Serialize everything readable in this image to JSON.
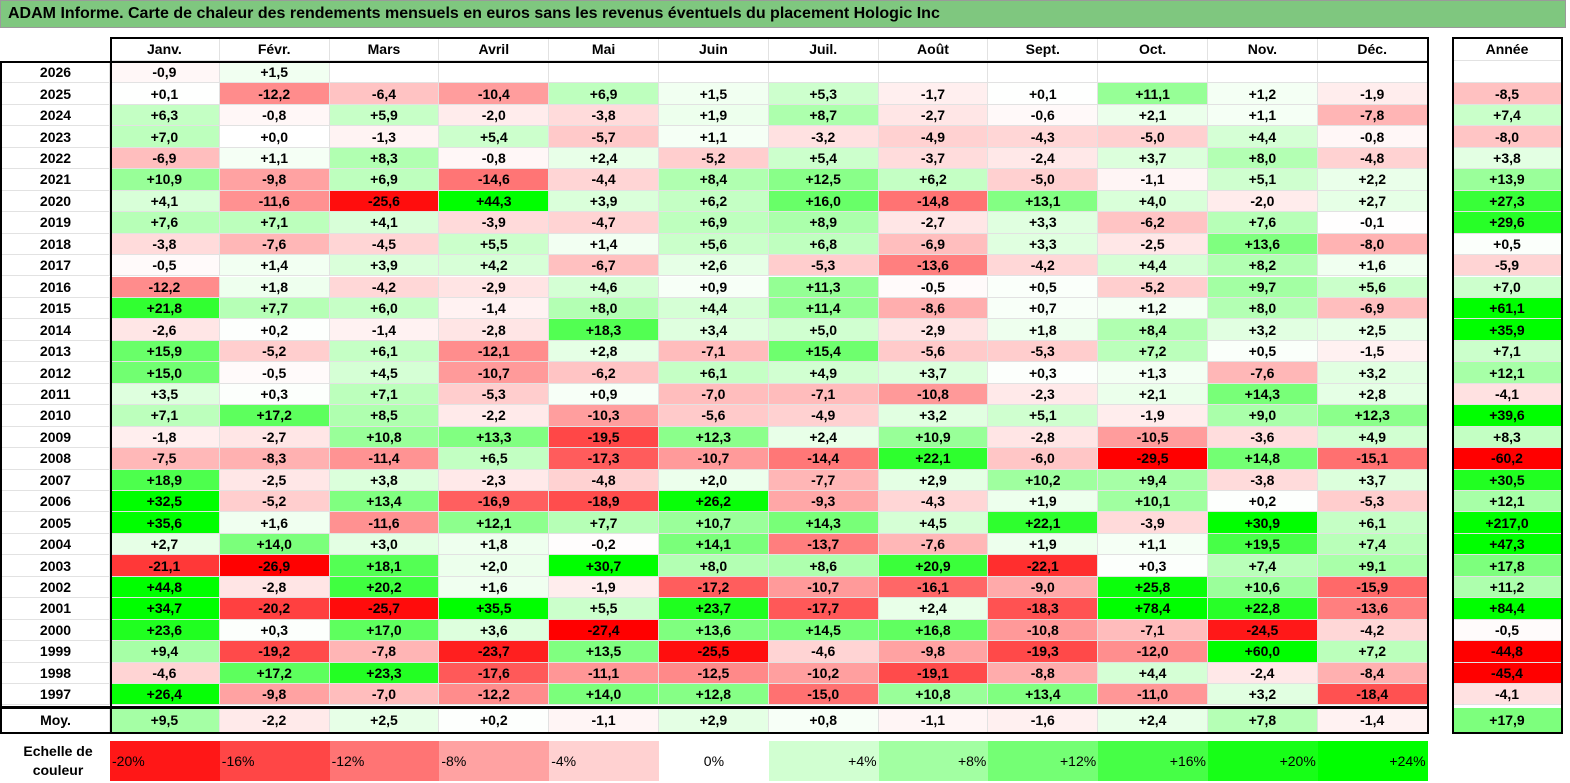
{
  "title": "ADAM Informe. Carte de chaleur des rendements mensuels en euros sans les revenus éventuels du placement Hologic Inc",
  "chart_data": {
    "type": "heatmap",
    "columns": [
      "Janv.",
      "Févr.",
      "Mars",
      "Avril",
      "Mai",
      "Juin",
      "Juil.",
      "Août",
      "Sept.",
      "Oct.",
      "Nov.",
      "Déc."
    ],
    "year_header": "Année",
    "rows": [
      {
        "label": "2026",
        "values": [
          "-0,9",
          "+1,5",
          "",
          "",
          "",
          "",
          "",
          "",
          "",
          "",
          "",
          ""
        ],
        "year": ""
      },
      {
        "label": "2025",
        "values": [
          "+0,1",
          "-12,2",
          "-6,4",
          "-10,4",
          "+6,9",
          "+1,5",
          "+5,3",
          "-1,7",
          "+0,1",
          "+11,1",
          "+1,2",
          "-1,9"
        ],
        "year": "-8,5"
      },
      {
        "label": "2024",
        "values": [
          "+6,3",
          "-0,8",
          "+5,9",
          "-2,0",
          "-3,8",
          "+1,9",
          "+8,7",
          "-2,7",
          "-0,6",
          "+2,1",
          "+1,1",
          "-7,8"
        ],
        "year": "+7,4"
      },
      {
        "label": "2023",
        "values": [
          "+7,0",
          "+0,0",
          "-1,3",
          "+5,4",
          "-5,7",
          "+1,1",
          "-3,2",
          "-4,9",
          "-4,3",
          "-5,0",
          "+4,4",
          "-0,8"
        ],
        "year": "-8,0"
      },
      {
        "label": "2022",
        "values": [
          "-6,9",
          "+1,1",
          "+8,3",
          "-0,8",
          "+2,4",
          "-5,2",
          "+5,4",
          "-3,7",
          "-2,4",
          "+3,7",
          "+8,0",
          "-4,8"
        ],
        "year": "+3,8"
      },
      {
        "label": "2021",
        "values": [
          "+10,9",
          "-9,8",
          "+6,9",
          "-14,6",
          "-4,4",
          "+8,4",
          "+12,5",
          "+6,2",
          "-5,0",
          "-1,1",
          "+5,1",
          "+2,2"
        ],
        "year": "+13,9"
      },
      {
        "label": "2020",
        "values": [
          "+4,1",
          "-11,6",
          "-25,6",
          "+44,3",
          "+3,9",
          "+6,2",
          "+16,0",
          "-14,8",
          "+13,1",
          "+4,0",
          "-2,0",
          "+2,7"
        ],
        "year": "+27,3"
      },
      {
        "label": "2019",
        "values": [
          "+7,6",
          "+7,1",
          "+4,1",
          "-3,9",
          "-4,7",
          "+6,9",
          "+8,9",
          "-2,7",
          "+3,3",
          "-6,2",
          "+7,6",
          "-0,1"
        ],
        "year": "+29,6"
      },
      {
        "label": "2018",
        "values": [
          "-3,8",
          "-7,6",
          "-4,5",
          "+5,5",
          "+1,4",
          "+5,6",
          "+6,8",
          "-6,9",
          "+3,3",
          "-2,5",
          "+13,6",
          "-8,0"
        ],
        "year": "+0,5"
      },
      {
        "label": "2017",
        "values": [
          "-0,5",
          "+1,4",
          "+3,9",
          "+4,2",
          "-6,7",
          "+2,6",
          "-5,3",
          "-13,6",
          "-4,2",
          "+4,4",
          "+8,2",
          "+1,6"
        ],
        "year": "-5,9"
      },
      {
        "label": "2016",
        "values": [
          "-12,2",
          "+1,8",
          "-4,2",
          "-2,9",
          "+4,6",
          "+0,9",
          "+11,3",
          "-0,5",
          "+0,5",
          "-5,2",
          "+9,7",
          "+5,6"
        ],
        "year": "+7,0"
      },
      {
        "label": "2015",
        "values": [
          "+21,8",
          "+7,7",
          "+6,0",
          "-1,4",
          "+8,0",
          "+4,4",
          "+11,4",
          "-8,6",
          "+0,7",
          "+1,2",
          "+8,0",
          "-6,9"
        ],
        "year": "+61,1"
      },
      {
        "label": "2014",
        "values": [
          "-2,6",
          "+0,2",
          "-1,4",
          "-2,8",
          "+18,3",
          "+3,4",
          "+5,0",
          "-2,9",
          "+1,8",
          "+8,4",
          "+3,2",
          "+2,5"
        ],
        "year": "+35,9"
      },
      {
        "label": "2013",
        "values": [
          "+15,9",
          "-5,2",
          "+6,1",
          "-12,1",
          "+2,8",
          "-7,1",
          "+15,4",
          "-5,6",
          "-5,3",
          "+7,2",
          "+0,5",
          "-1,5"
        ],
        "year": "+7,1"
      },
      {
        "label": "2012",
        "values": [
          "+15,0",
          "-0,5",
          "+4,5",
          "-10,7",
          "-6,2",
          "+6,1",
          "+4,9",
          "+3,7",
          "+0,3",
          "+1,3",
          "-7,6",
          "+3,2"
        ],
        "year": "+12,1"
      },
      {
        "label": "2011",
        "values": [
          "+3,5",
          "+0,3",
          "+7,1",
          "-5,3",
          "+0,9",
          "-7,0",
          "-7,1",
          "-10,8",
          "-2,3",
          "+2,1",
          "+14,3",
          "+2,8"
        ],
        "year": "-4,1"
      },
      {
        "label": "2010",
        "values": [
          "+7,1",
          "+17,2",
          "+8,5",
          "-2,2",
          "-10,3",
          "-5,6",
          "-4,9",
          "+3,2",
          "+5,1",
          "-1,9",
          "+9,0",
          "+12,3"
        ],
        "year": "+39,6"
      },
      {
        "label": "2009",
        "values": [
          "-1,8",
          "-2,7",
          "+10,8",
          "+13,3",
          "-19,5",
          "+12,3",
          "+2,4",
          "+10,9",
          "-2,8",
          "-10,5",
          "-3,6",
          "+4,9"
        ],
        "year": "+8,3"
      },
      {
        "label": "2008",
        "values": [
          "-7,5",
          "-8,3",
          "-11,4",
          "+6,5",
          "-17,3",
          "-10,7",
          "-14,4",
          "+22,1",
          "-6,0",
          "-29,5",
          "+14,8",
          "-15,1"
        ],
        "year": "-60,2"
      },
      {
        "label": "2007",
        "values": [
          "+18,9",
          "-2,5",
          "+3,8",
          "-2,3",
          "-4,8",
          "+2,0",
          "-7,7",
          "+2,9",
          "+10,2",
          "+9,4",
          "-3,8",
          "+3,7"
        ],
        "year": "+30,5"
      },
      {
        "label": "2006",
        "values": [
          "+32,5",
          "-5,2",
          "+13,4",
          "-16,9",
          "-18,9",
          "+26,2",
          "-9,3",
          "-4,3",
          "+1,9",
          "+10,1",
          "+0,2",
          "-5,3"
        ],
        "year": "+12,1"
      },
      {
        "label": "2005",
        "values": [
          "+35,6",
          "+1,6",
          "-11,6",
          "+12,1",
          "+7,7",
          "+10,7",
          "+14,3",
          "+4,5",
          "+22,1",
          "-3,9",
          "+30,9",
          "+6,1"
        ],
        "year": "+217,0"
      },
      {
        "label": "2004",
        "values": [
          "+2,7",
          "+14,0",
          "+3,0",
          "+1,8",
          "-0,2",
          "+14,1",
          "-13,7",
          "-7,6",
          "+1,9",
          "+1,1",
          "+19,5",
          "+7,4"
        ],
        "year": "+47,3"
      },
      {
        "label": "2003",
        "values": [
          "-21,1",
          "-26,9",
          "+18,1",
          "+2,0",
          "+30,7",
          "+8,0",
          "+8,6",
          "+20,9",
          "-22,1",
          "+0,3",
          "+7,4",
          "+9,1"
        ],
        "year": "+17,8"
      },
      {
        "label": "2002",
        "values": [
          "+44,8",
          "-2,8",
          "+20,2",
          "+1,6",
          "-1,9",
          "-17,2",
          "-10,7",
          "-16,1",
          "-9,0",
          "+25,8",
          "+10,6",
          "-15,9"
        ],
        "year": "+11,2"
      },
      {
        "label": "2001",
        "values": [
          "+34,7",
          "-20,2",
          "-25,7",
          "+35,5",
          "+5,5",
          "+23,7",
          "-17,7",
          "+2,4",
          "-18,3",
          "+78,4",
          "+22,8",
          "-13,6"
        ],
        "year": "+84,4"
      },
      {
        "label": "2000",
        "values": [
          "+23,6",
          "+0,3",
          "+17,0",
          "+3,6",
          "-27,4",
          "+13,6",
          "+14,5",
          "+16,8",
          "-10,8",
          "-7,1",
          "-24,5",
          "-4,2"
        ],
        "year": "-0,5"
      },
      {
        "label": "1999",
        "values": [
          "+9,4",
          "-19,2",
          "-7,8",
          "-23,7",
          "+13,5",
          "-25,5",
          "-4,6",
          "-9,8",
          "-19,3",
          "-12,0",
          "+60,0",
          "+7,2"
        ],
        "year": "-44,8"
      },
      {
        "label": "1998",
        "values": [
          "-4,6",
          "+17,2",
          "+23,3",
          "-17,6",
          "-11,1",
          "-12,5",
          "-10,2",
          "-19,1",
          "-8,8",
          "+4,4",
          "-2,4",
          "-8,4"
        ],
        "year": "-45,4"
      },
      {
        "label": "1997",
        "values": [
          "+26,4",
          "-9,8",
          "-7,0",
          "-12,2",
          "+14,0",
          "+12,8",
          "-15,0",
          "+10,8",
          "+13,4",
          "-11,0",
          "+3,2",
          "-18,4"
        ],
        "year": "-4,1"
      }
    ],
    "average": {
      "label": "Moy.",
      "values": [
        "+9,5",
        "-2,2",
        "+2,5",
        "+0,2",
        "-1,1",
        "+2,9",
        "+0,8",
        "-1,1",
        "-1,6",
        "+2,4",
        "+7,8",
        "-1,4"
      ],
      "year": "+17,9"
    },
    "scale": {
      "label": "Echelle de couleur",
      "steps": [
        "-20%",
        "-16%",
        "-12%",
        "-8%",
        "-4%",
        "0%",
        "+4%",
        "+8%",
        "+12%",
        "+16%",
        "+20%",
        "+24%"
      ]
    },
    "colors": {
      "negative": "#ff0000",
      "neutral": "#ffffff",
      "positive": "#00ff00"
    }
  }
}
